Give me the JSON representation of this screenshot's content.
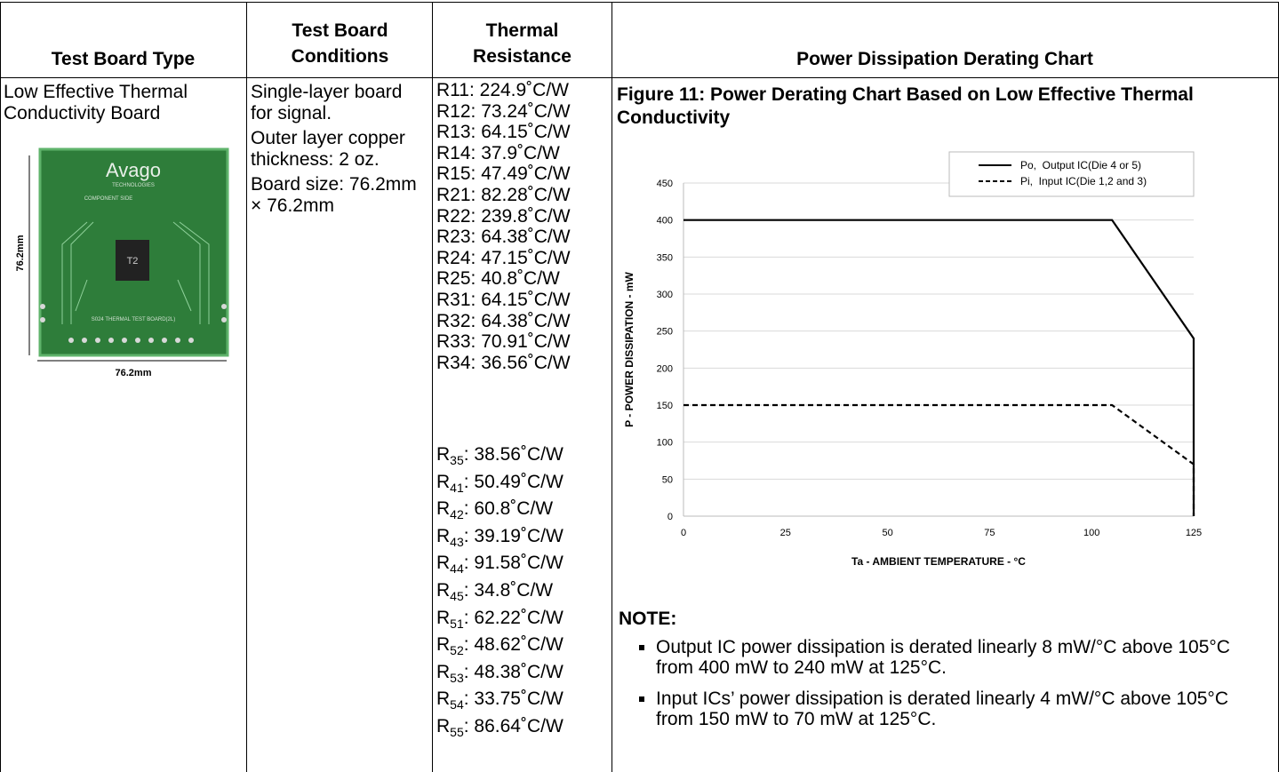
{
  "table": {
    "headers": [
      "Test Board Type",
      "Test Board Conditions",
      "Thermal Resistance",
      "Power Dissipation Derating Chart"
    ],
    "board_type": "Low Effective Thermal Conductivity Board",
    "board_image": {
      "logo": "Avago",
      "logo_sub": "TECHNOLOGIES",
      "side": "COMPONENT SIDE",
      "chip": "T2",
      "board_name": "S024 THERMAL TEST BOARD(2L)",
      "height_label": "76.2mm",
      "width_label": "76.2mm"
    },
    "conditions": [
      "Single-layer board for signal.",
      "Outer layer copper thickness: 2 oz.",
      "Board size: 76.2mm × 76.2mm"
    ],
    "resistances": [
      "R11: 224.9˚C/W",
      "R12: 73.24˚C/W",
      "R13: 64.15˚C/W",
      "R14: 37.9˚C/W",
      "R15: 47.49˚C/W",
      "R21: 82.28˚C/W",
      "R22: 239.8˚C/W",
      "R23: 64.38˚C/W",
      "R24: 47.15˚C/W",
      "R25: 40.8˚C/W",
      "R31: 64.15˚C/W",
      "R32: 64.38˚C/W",
      "R33: 70.91˚C/W",
      "R34: 36.56˚C/W",
      {
        "r": "R",
        "sub": "35",
        "rest": ": 38.56˚C/W"
      },
      {
        "r": "R",
        "sub": "41",
        "rest": ": 50.49˚C/W"
      },
      {
        "r": "R",
        "sub": "42",
        "rest": ": 60.8˚C/W"
      },
      {
        "r": "R",
        "sub": "43",
        "rest": ": 39.19˚C/W"
      },
      {
        "r": "R",
        "sub": "44",
        "rest": ": 91.58˚C/W"
      },
      {
        "r": "R",
        "sub": "45",
        "rest": ": 34.8˚C/W"
      },
      {
        "r": "R",
        "sub": "51",
        "rest": ": 62.22˚C/W"
      },
      {
        "r": "R",
        "sub": "52",
        "rest": ": 48.62˚C/W"
      },
      {
        "r": "R",
        "sub": "53",
        "rest": ": 48.38˚C/W"
      },
      {
        "r": "R",
        "sub": "54",
        "rest": ": 33.75˚C/W"
      },
      {
        "r": "R",
        "sub": "55",
        "rest": ": 86.64˚C/W"
      }
    ]
  },
  "figure": {
    "title": "Figure 11:  Power Derating Chart Based on Low Effective Thermal Conductivity",
    "chart_data": {
      "type": "line",
      "x_label": "Ta - AMBIENT TEMPERATURE - °C",
      "y_label": "P - POWER DISSIPATION - mW",
      "x": [
        0,
        105,
        125,
        125
      ],
      "series": [
        {
          "name": "Po,  Output IC(Die 4 or 5)",
          "color": "#000000",
          "line_style": "solid",
          "values": [
            400,
            400,
            240,
            0
          ]
        },
        {
          "name": "Pi,  Input IC(Die 1,2 and 3)",
          "color": "#000000",
          "line_style": "dashed",
          "values": [
            150,
            150,
            70,
            0
          ]
        }
      ],
      "xlim": [
        0,
        125
      ],
      "xticks": [
        0,
        25,
        50,
        75,
        100,
        125
      ],
      "ylim": [
        0,
        450
      ],
      "yticks": [
        0,
        50,
        100,
        150,
        200,
        250,
        300,
        350,
        400,
        450
      ],
      "grid": true,
      "legend": "top-right"
    },
    "note": {
      "title": "NOTE:",
      "items": [
        "Output IC power dissipation is derated linearly 8 mW/°C above 105°C from 400 mW to 240 mW at 125°C.",
        "Input ICs’ power dissipation is derated linearly 4 mW/°C above 105°C from 150 mW to 70 mW at 125°C."
      ]
    }
  }
}
